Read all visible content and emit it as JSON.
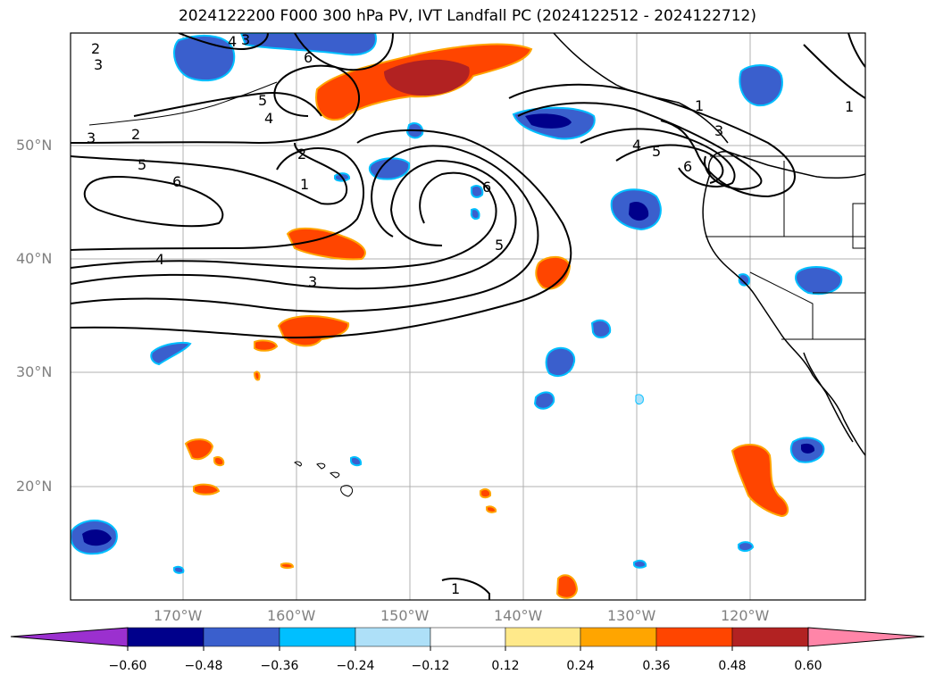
{
  "title": "2024122200 F000 300 hPa PV, IVT Landfall PC (2024122512 - 2024122712)",
  "map": {
    "lon_ticks": [
      "170°W",
      "160°W",
      "150°W",
      "140°W",
      "130°W",
      "120°W"
    ],
    "lat_ticks": [
      "50°N",
      "40°N",
      "30°N",
      "20°N"
    ],
    "gridlines": true
  },
  "contours": {
    "labels": [
      "1",
      "1",
      "1",
      "1",
      "2",
      "2",
      "2",
      "3",
      "3",
      "3",
      "3",
      "3",
      "4",
      "4",
      "4",
      "4",
      "5",
      "5",
      "5",
      "5",
      "6",
      "6",
      "6",
      "6"
    ]
  },
  "colorbar": {
    "ticks": [
      "−0.60",
      "−0.48",
      "−0.36",
      "−0.24",
      "−0.12",
      "0.12",
      "0.24",
      "0.36",
      "0.48",
      "0.60"
    ],
    "colors": [
      "#9b30cf",
      "#00008b",
      "#3a5fcd",
      "#00bfff",
      "#aee0f8",
      "#ffffff",
      "#ffe98a",
      "#ffa500",
      "#ff4500",
      "#b22222",
      "#ff85a8"
    ],
    "extend": "both"
  }
}
